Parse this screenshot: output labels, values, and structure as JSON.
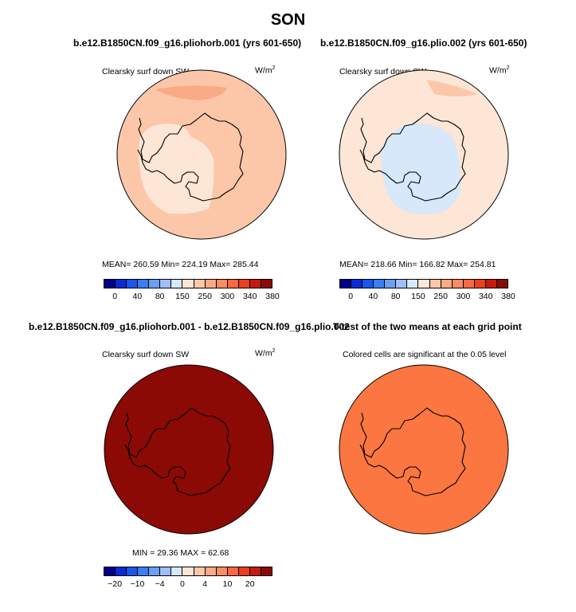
{
  "page": {
    "title": "SON"
  },
  "panels": [
    {
      "title": "b.e12.B1850CN.f09_g16.pliohorb.001 (yrs 601-650)",
      "variable": "Clearsky surf down SW",
      "units": "W/m",
      "units_sup": "2",
      "stats": "MEAN= 260.59   Min= 224.19   Max= 285.44",
      "colors": {
        "outer": "#fcc7a9",
        "inner": "#fde6d6",
        "top_patch": "#fbaa86"
      }
    },
    {
      "title": "b.e12.B1850CN.f09_g16.plio.002 (yrs 601-650)",
      "variable": "Clearsky surf down SW",
      "units": "W/m",
      "units_sup": "2",
      "stats": "MEAN= 218.66   Min= 166.82   Max= 254.81",
      "colors": {
        "outer": "#fde6d6",
        "inner": "#d6e8fa",
        "top_patch": "#fcc7a9"
      }
    },
    {
      "title": "b.e12.B1850CN.f09_g16.pliohorb.001 - b.e12.B1850CN.f09_g16.plio.002",
      "variable": "Clearsky surf down SW",
      "units": "W/m",
      "units_sup": "2",
      "stats": "MIN =  29.36  MAX =  62.68",
      "colors": {
        "fill": "#8b0a05"
      }
    },
    {
      "title": "T-test of the two means at each grid point",
      "variable": "Colored cells are significant at the 0.05 level",
      "colors": {
        "fill": "#fb7640"
      }
    }
  ],
  "colorbars": {
    "sequential": {
      "colors": [
        "#00008c",
        "#0a2ad6",
        "#1a55ee",
        "#3a7df5",
        "#6d9ef7",
        "#9fbff9",
        "#d6e8fa",
        "#fde6d6",
        "#fcc7a9",
        "#fbaa86",
        "#fb8b61",
        "#f9683e",
        "#ed3f1e",
        "#c81a0c",
        "#8b0a05"
      ],
      "labels": [
        "0",
        "40",
        "80",
        "150",
        "250",
        "300",
        "340",
        "380"
      ]
    },
    "diverging": {
      "colors": [
        "#00008c",
        "#0a2ad6",
        "#1a55ee",
        "#3a7df5",
        "#6d9ef7",
        "#9fbff9",
        "#d6e8fa",
        "#fde6d6",
        "#fcc7a9",
        "#fbaa86",
        "#fb8b61",
        "#f9683e",
        "#ed3f1e",
        "#c81a0c",
        "#8b0a05"
      ],
      "labels": [
        "−20",
        "−10",
        "−4",
        "0",
        "4",
        "10",
        "20"
      ]
    }
  },
  "chart_data": [
    {
      "type": "heatmap",
      "projection": "south-polar-stereographic",
      "variable": "Clearsky surf down SW",
      "units": "W/m2",
      "season": "SON",
      "case": "b.e12.B1850CN.f09_g16.pliohorb.001 (yrs 601-650)",
      "mean": 260.59,
      "min": 224.19,
      "max": 285.44,
      "contour_levels": [
        0,
        40,
        80,
        150,
        250,
        300,
        340,
        380
      ]
    },
    {
      "type": "heatmap",
      "projection": "south-polar-stereographic",
      "variable": "Clearsky surf down SW",
      "units": "W/m2",
      "season": "SON",
      "case": "b.e12.B1850CN.f09_g16.plio.002 (yrs 601-650)",
      "mean": 218.66,
      "min": 166.82,
      "max": 254.81,
      "contour_levels": [
        0,
        40,
        80,
        150,
        250,
        300,
        340,
        380
      ]
    },
    {
      "type": "heatmap",
      "projection": "south-polar-stereographic",
      "variable": "Clearsky surf down SW",
      "units": "W/m2",
      "season": "SON",
      "case": "b.e12.B1850CN.f09_g16.pliohorb.001 - b.e12.B1850CN.f09_g16.plio.002",
      "min": 29.36,
      "max": 62.68,
      "contour_levels": [
        -20,
        -10,
        -4,
        0,
        4,
        10,
        20
      ]
    },
    {
      "type": "heatmap",
      "projection": "south-polar-stereographic",
      "description_label": "T-test of the two means at each grid point",
      "note": "Colored cells are significant at the 0.05 level"
    }
  ]
}
